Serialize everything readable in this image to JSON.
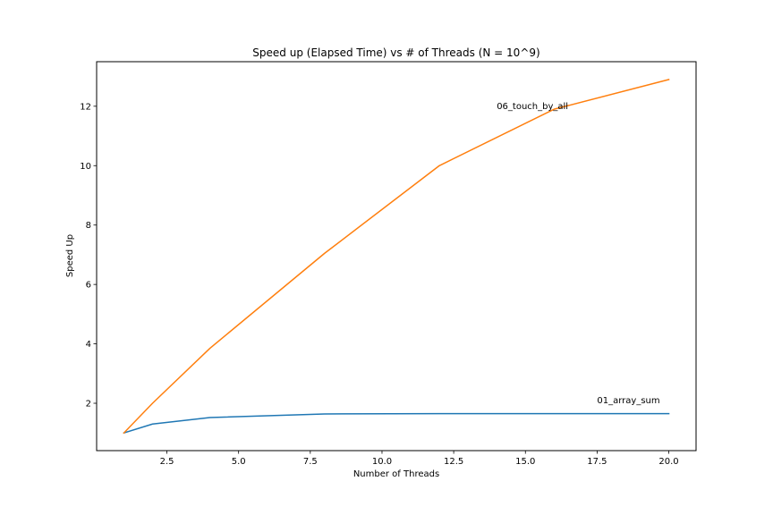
{
  "chart_data": {
    "type": "line",
    "title": "Speed up (Elapsed Time) vs # of Threads (N = 10^9)",
    "xlabel": "Number of Threads",
    "ylabel": "Speed Up",
    "xlim": [
      0.05,
      20.95
    ],
    "ylim": [
      0.405,
      13.5
    ],
    "xticks": [
      2.5,
      5.0,
      7.5,
      10.0,
      12.5,
      15.0,
      17.5,
      20.0
    ],
    "xtick_labels": [
      "2.5",
      "5.0",
      "7.5",
      "10.0",
      "12.5",
      "15.0",
      "17.5",
      "20.0"
    ],
    "yticks": [
      2,
      4,
      6,
      8,
      10,
      12
    ],
    "ytick_labels": [
      "2",
      "4",
      "6",
      "8",
      "10",
      "12"
    ],
    "grid": false,
    "series": [
      {
        "color": "#1f77b4",
        "x": [
          1,
          2,
          4,
          8,
          12,
          16,
          20
        ],
        "y": [
          1.0,
          1.3,
          1.52,
          1.64,
          1.65,
          1.65,
          1.65
        ]
      },
      {
        "color": "#ff7f0e",
        "x": [
          1,
          2,
          4,
          8,
          12,
          16,
          20
        ],
        "y": [
          1.0,
          2.0,
          3.85,
          7.05,
          10.0,
          11.9,
          12.9
        ]
      }
    ],
    "annotations": [
      {
        "text": "01_array_sum",
        "x": 17.5,
        "y": 2.0
      },
      {
        "text": "06_touch_by_all",
        "x": 14.0,
        "y": 11.9
      }
    ]
  }
}
